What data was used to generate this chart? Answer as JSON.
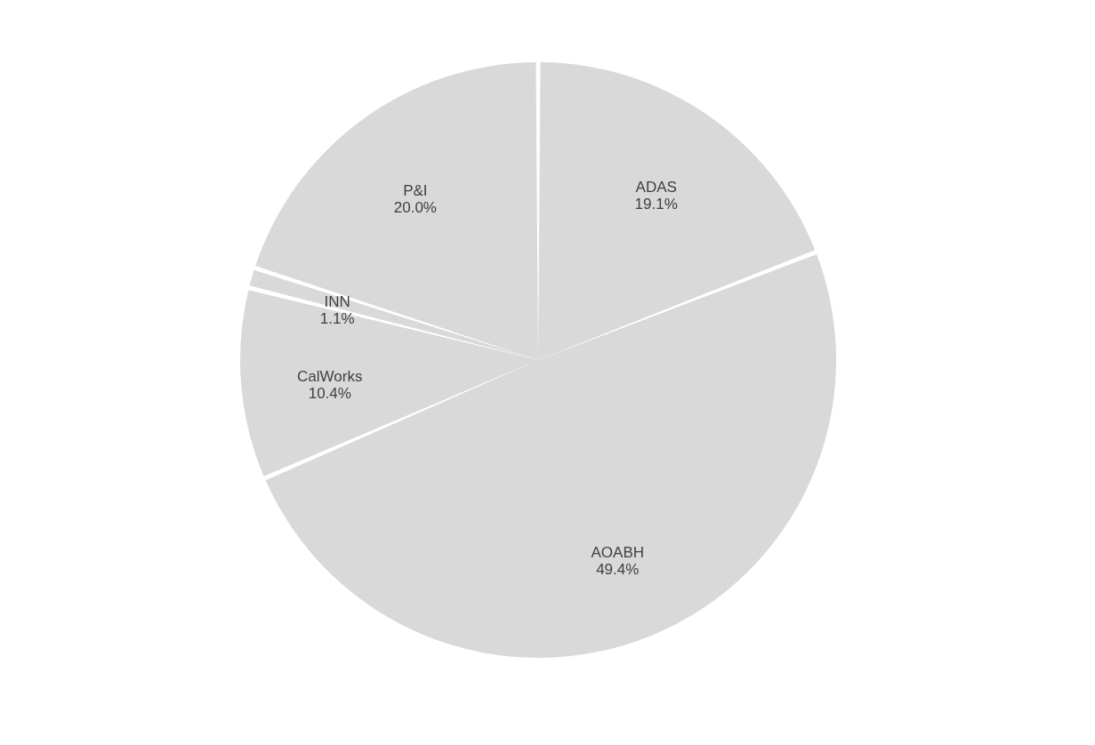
{
  "chart_data": {
    "type": "pie",
    "categories": [
      "ADAS",
      "AOABH",
      "CalWorks",
      "INN",
      "P&I"
    ],
    "values": [
      19.1,
      49.4,
      10.4,
      1.1,
      20.0
    ],
    "value_labels": [
      "19.1%",
      "49.4%",
      "10.4%",
      "1.1%",
      "20.0%"
    ],
    "colors": [
      "#d9d9d9",
      "#d9d9d9",
      "#d9d9d9",
      "#d9d9d9",
      "#d9d9d9"
    ],
    "legend": false
  }
}
